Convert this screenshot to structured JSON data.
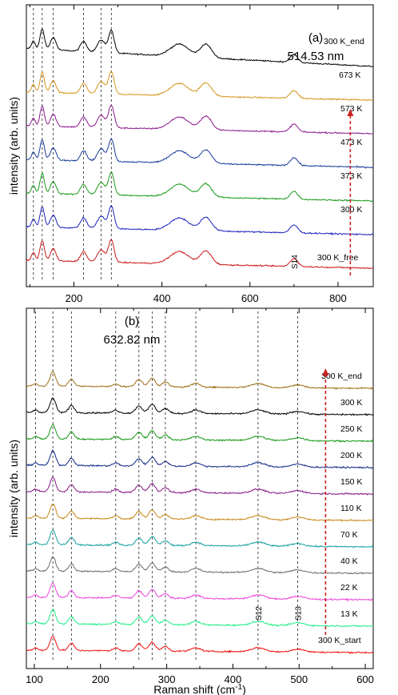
{
  "chart_data": [
    {
      "type": "line",
      "panel_label": "(a)",
      "wavelength": "514.53 nm",
      "ylabel": "intensity (arb. units)",
      "xlim": [
        92,
        880
      ],
      "xticks": [
        200,
        400,
        600,
        800
      ],
      "peak_markers": [
        108,
        128,
        153,
        222,
        262,
        285
      ],
      "arrow": {
        "x": 828,
        "color": "#cc2222",
        "label": ""
      },
      "annotations": [
        {
          "text": "S14",
          "x": 700
        }
      ],
      "series": [
        {
          "name": "300 K_end",
          "color": "#000000"
        },
        {
          "name": "673 K",
          "color": "#d4961e"
        },
        {
          "name": "573 K",
          "color": "#8e1a8e"
        },
        {
          "name": "473 K",
          "color": "#1a3d99"
        },
        {
          "name": "373 K",
          "color": "#1a9a1a"
        },
        {
          "name": "300 K",
          "color": "#1a22bb"
        },
        {
          "name": "300 K_free",
          "color": "#cc1a1a"
        }
      ]
    },
    {
      "type": "line",
      "panel_label": "(b)",
      "wavelength": "632.82 nm",
      "ylabel": "intensity (arb. units)",
      "xlabel": "Raman shift (cm",
      "xlabel_sup": "-1",
      "xlabel_end": ")",
      "xlim": [
        88,
        612
      ],
      "xticks": [
        100,
        200,
        300,
        400,
        500,
        600
      ],
      "peak_markers": [
        102,
        128,
        156,
        223,
        258,
        278,
        298,
        344,
        438,
        498
      ],
      "arrow": {
        "x": 540,
        "color": "#cc2222",
        "label": ""
      },
      "annotations": [
        {
          "text": "S12",
          "x": 438
        },
        {
          "text": "S13",
          "x": 498
        }
      ],
      "series": [
        {
          "name": "300 K_end",
          "color": "#a07018"
        },
        {
          "name": "300 K",
          "color": "#000000"
        },
        {
          "name": "250 K",
          "color": "#1a991a"
        },
        {
          "name": "200 K",
          "color": "#142c88"
        },
        {
          "name": "150 K",
          "color": "#861886"
        },
        {
          "name": "110 K",
          "color": "#c88a1a"
        },
        {
          "name": "70 K",
          "color": "#17a0a0"
        },
        {
          "name": "40 K",
          "color": "#6e6e6e"
        },
        {
          "name": "22 K",
          "color": "#ee44dd"
        },
        {
          "name": "13 K",
          "color": "#22ee88"
        },
        {
          "name": "300 K_start",
          "color": "#ee1111"
        }
      ]
    }
  ]
}
